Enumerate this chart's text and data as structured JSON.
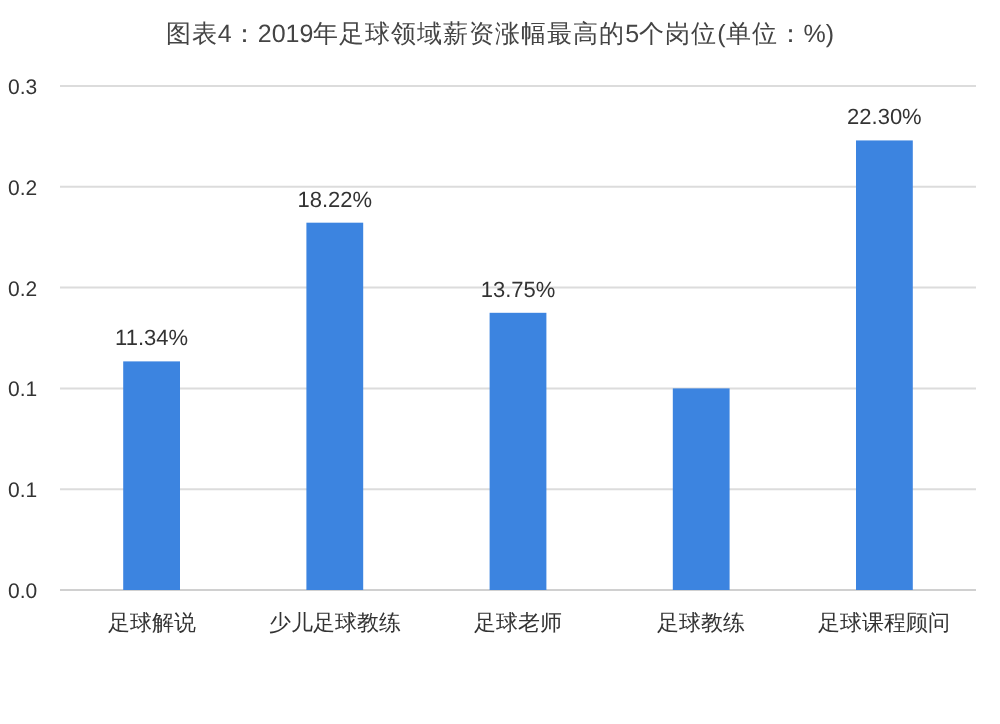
{
  "chart_data": {
    "type": "bar",
    "title": "图表4：2019年足球领域薪资涨幅最高的5个岗位(单位：%)",
    "categories": [
      "足球解说",
      "少儿足球教练",
      "足球老师",
      "足球教练",
      "足球课程顾问"
    ],
    "values": [
      0.1134,
      0.1822,
      0.1375,
      0.1,
      0.223
    ],
    "value_labels": [
      "11.34%",
      "18.22%",
      "13.75%",
      null,
      "22.30%"
    ],
    "color": "#3c84e0",
    "ylim": [
      0,
      0.25
    ],
    "yticks": [
      {
        "value": 0,
        "label": "0.0"
      },
      {
        "value": 0.05,
        "label": "0.1"
      },
      {
        "value": 0.1,
        "label": "0.1"
      },
      {
        "value": 0.15,
        "label": "0.2"
      },
      {
        "value": 0.2,
        "label": "0.2"
      },
      {
        "value": 0.25,
        "label": "0.3"
      }
    ],
    "grid": "y"
  }
}
